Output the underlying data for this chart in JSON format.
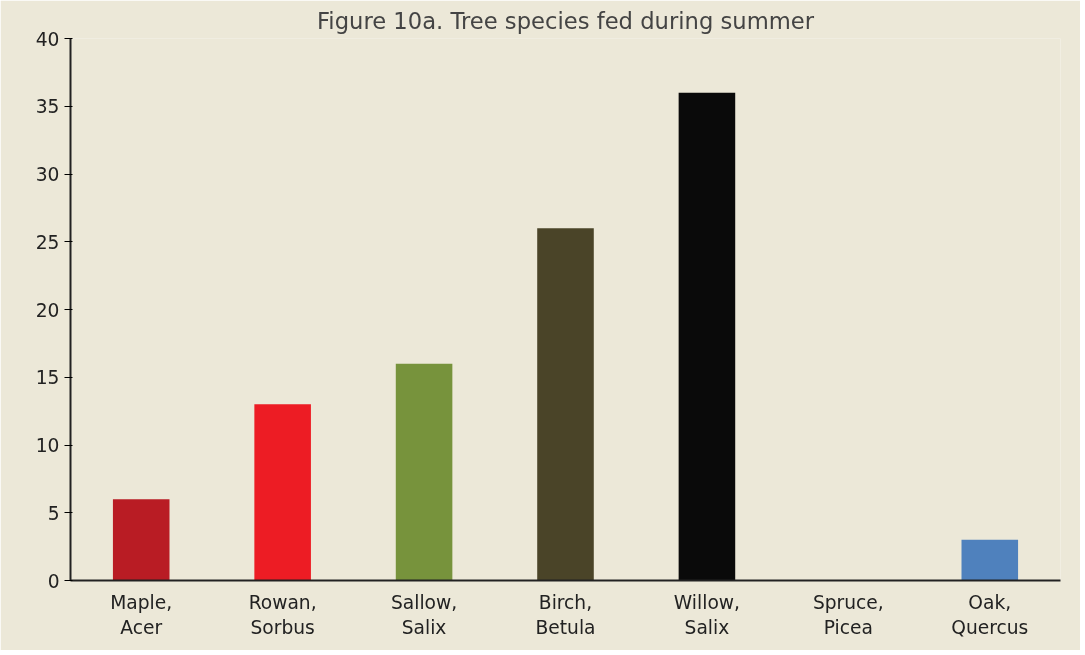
{
  "chart_data": {
    "type": "bar",
    "title": "Figure 10a. Tree species fed during summer",
    "categories": [
      "Maple,\nAcer",
      "Rowan,\nSorbus",
      "Sallow,\nSalix",
      "Birch,\nBetula",
      "Willow,\nSalix",
      "Spruce,\nPicea",
      "Oak,\nQuercus"
    ],
    "values": [
      6,
      13,
      16,
      26,
      36,
      0,
      3
    ],
    "colors": [
      "#b91c24",
      "#ed1c24",
      "#77933c",
      "#4a4428",
      "#0a0a0a",
      "#808080",
      "#4f81bd"
    ],
    "ylim": [
      0,
      40
    ],
    "yticks": [
      0,
      5,
      10,
      15,
      20,
      25,
      30,
      35,
      40
    ],
    "grid": false
  }
}
